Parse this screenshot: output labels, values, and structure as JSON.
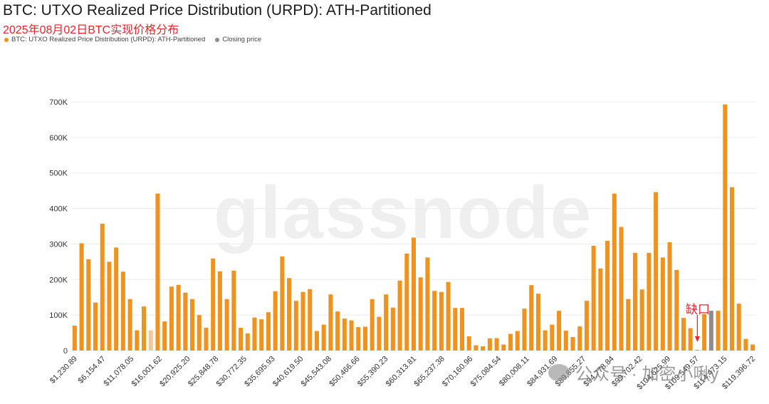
{
  "header": {
    "title": "BTC: UTXO Realized Price Distribution (URPD): ATH-Partitioned",
    "subtitle": "2025年08月02日BTC实现价格分布"
  },
  "legend": [
    {
      "label": "BTC: UTXO Realized Price Distribution (URPD): ATH-Partitioned",
      "color": "#f0921e"
    },
    {
      "label": "Closing price",
      "color": "#8c8c8c"
    }
  ],
  "watermark": "glassnode",
  "wechat_watermark": "公众号 · 加密小啾y",
  "annotation": {
    "label": "缺口",
    "color": "#e8262a"
  },
  "chart_data": {
    "type": "bar",
    "title": "BTC: UTXO Realized Price Distribution (URPD): ATH-Partitioned",
    "ylim": [
      0,
      700000
    ],
    "yticks": [
      0,
      100000,
      200000,
      300000,
      400000,
      500000,
      600000,
      700000
    ],
    "ytick_labels": [
      "0",
      "100K",
      "200K",
      "300K",
      "400K",
      "500K",
      "600K",
      "700K"
    ],
    "xtick_labels": [
      "$1,230.89",
      "$6,154.47",
      "$11,078.05",
      "$16,001.62",
      "$20,925.20",
      "$25,848.78",
      "$30,772.35",
      "$35,695.93",
      "$40,619.50",
      "$45,543.08",
      "$50,466.66",
      "$55,390.23",
      "$60,313.81",
      "$65,237.38",
      "$70,160.96",
      "$75,084.54",
      "$80,008.11",
      "$84,931.69",
      "$89,855.27",
      "$94,778.84",
      "$99,702.42",
      "$104,625.99",
      "$109,549.57",
      "$114,473.15",
      "$119,396.72"
    ],
    "grid": true,
    "legend_position": "top-left",
    "colors": {
      "orange": "#f0921e",
      "faded": "#f2c79a",
      "closing": "#8c8c8c"
    },
    "values": [
      70000,
      302000,
      257000,
      135000,
      357000,
      250000,
      290000,
      222000,
      145000,
      57000,
      124000,
      57000,
      442000,
      82000,
      180000,
      185000,
      163000,
      145000,
      100000,
      64000,
      259000,
      223000,
      145000,
      225000,
      64000,
      48000,
      93000,
      88000,
      108000,
      167000,
      265000,
      204000,
      140000,
      165000,
      173000,
      55000,
      73000,
      158000,
      110000,
      90000,
      85000,
      66000,
      67000,
      145000,
      95000,
      158000,
      121000,
      197000,
      273000,
      318000,
      206000,
      262000,
      168000,
      165000,
      193000,
      120000,
      120000,
      40000,
      15000,
      12000,
      34000,
      35000,
      17000,
      47000,
      55000,
      118000,
      184000,
      160000,
      57000,
      73000,
      112000,
      56000,
      38000,
      68000,
      140000,
      295000,
      231000,
      309000,
      442000,
      348000,
      145000,
      275000,
      172000,
      275000,
      446000,
      262000,
      305000,
      227000,
      92000,
      63000,
      2000,
      103000,
      112000,
      112000,
      693000,
      460000,
      132000,
      33000,
      17000
    ],
    "faded_index": 11,
    "closing_index": 92
  }
}
